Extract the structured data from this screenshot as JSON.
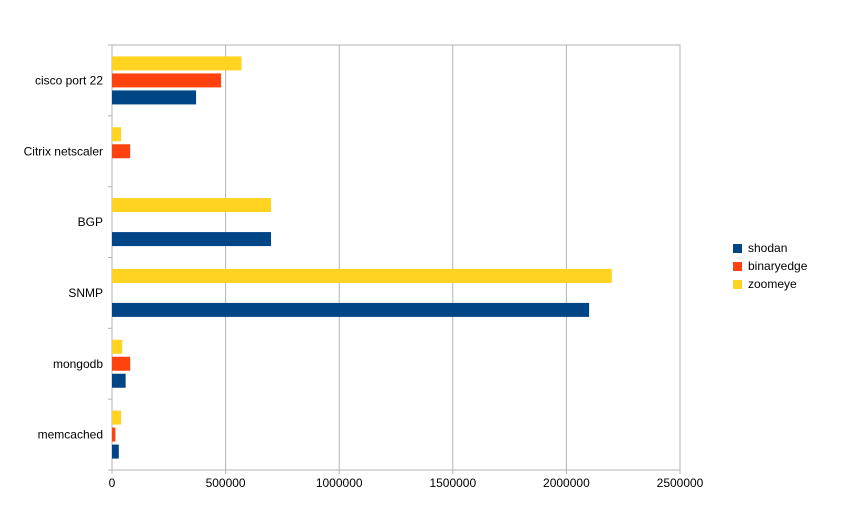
{
  "chart_data": {
    "type": "bar",
    "orientation": "horizontal",
    "title": "",
    "xlabel": "",
    "ylabel": "",
    "categories": [
      "cisco port 22",
      "Citrix netscaler",
      "BGP",
      "SNMP",
      "mongodb",
      "memcached"
    ],
    "series": [
      {
        "name": "shodan",
        "color": "#004586",
        "values": [
          370000,
          0,
          700000,
          2100000,
          60000,
          30000
        ]
      },
      {
        "name": "binaryedge",
        "color": "#ff420e",
        "values": [
          480000,
          80000,
          0,
          0,
          80000,
          15000
        ]
      },
      {
        "name": "zoomeye",
        "color": "#ffd320",
        "values": [
          570000,
          40000,
          700000,
          2200000,
          45000,
          40000
        ]
      }
    ],
    "xlim": [
      0,
      2500000
    ],
    "x_ticks": [
      0,
      500000,
      1000000,
      1500000,
      2000000,
      2500000
    ],
    "x_tick_labels": [
      "0",
      "500000",
      "1000000",
      "1500000",
      "2000000",
      "2500000"
    ],
    "grid": true,
    "legend_position": "right"
  },
  "style": {
    "grid_color": "#b3b3b3",
    "border_color": "#b3b3b3",
    "text_color": "#000000",
    "background": "#ffffff"
  }
}
